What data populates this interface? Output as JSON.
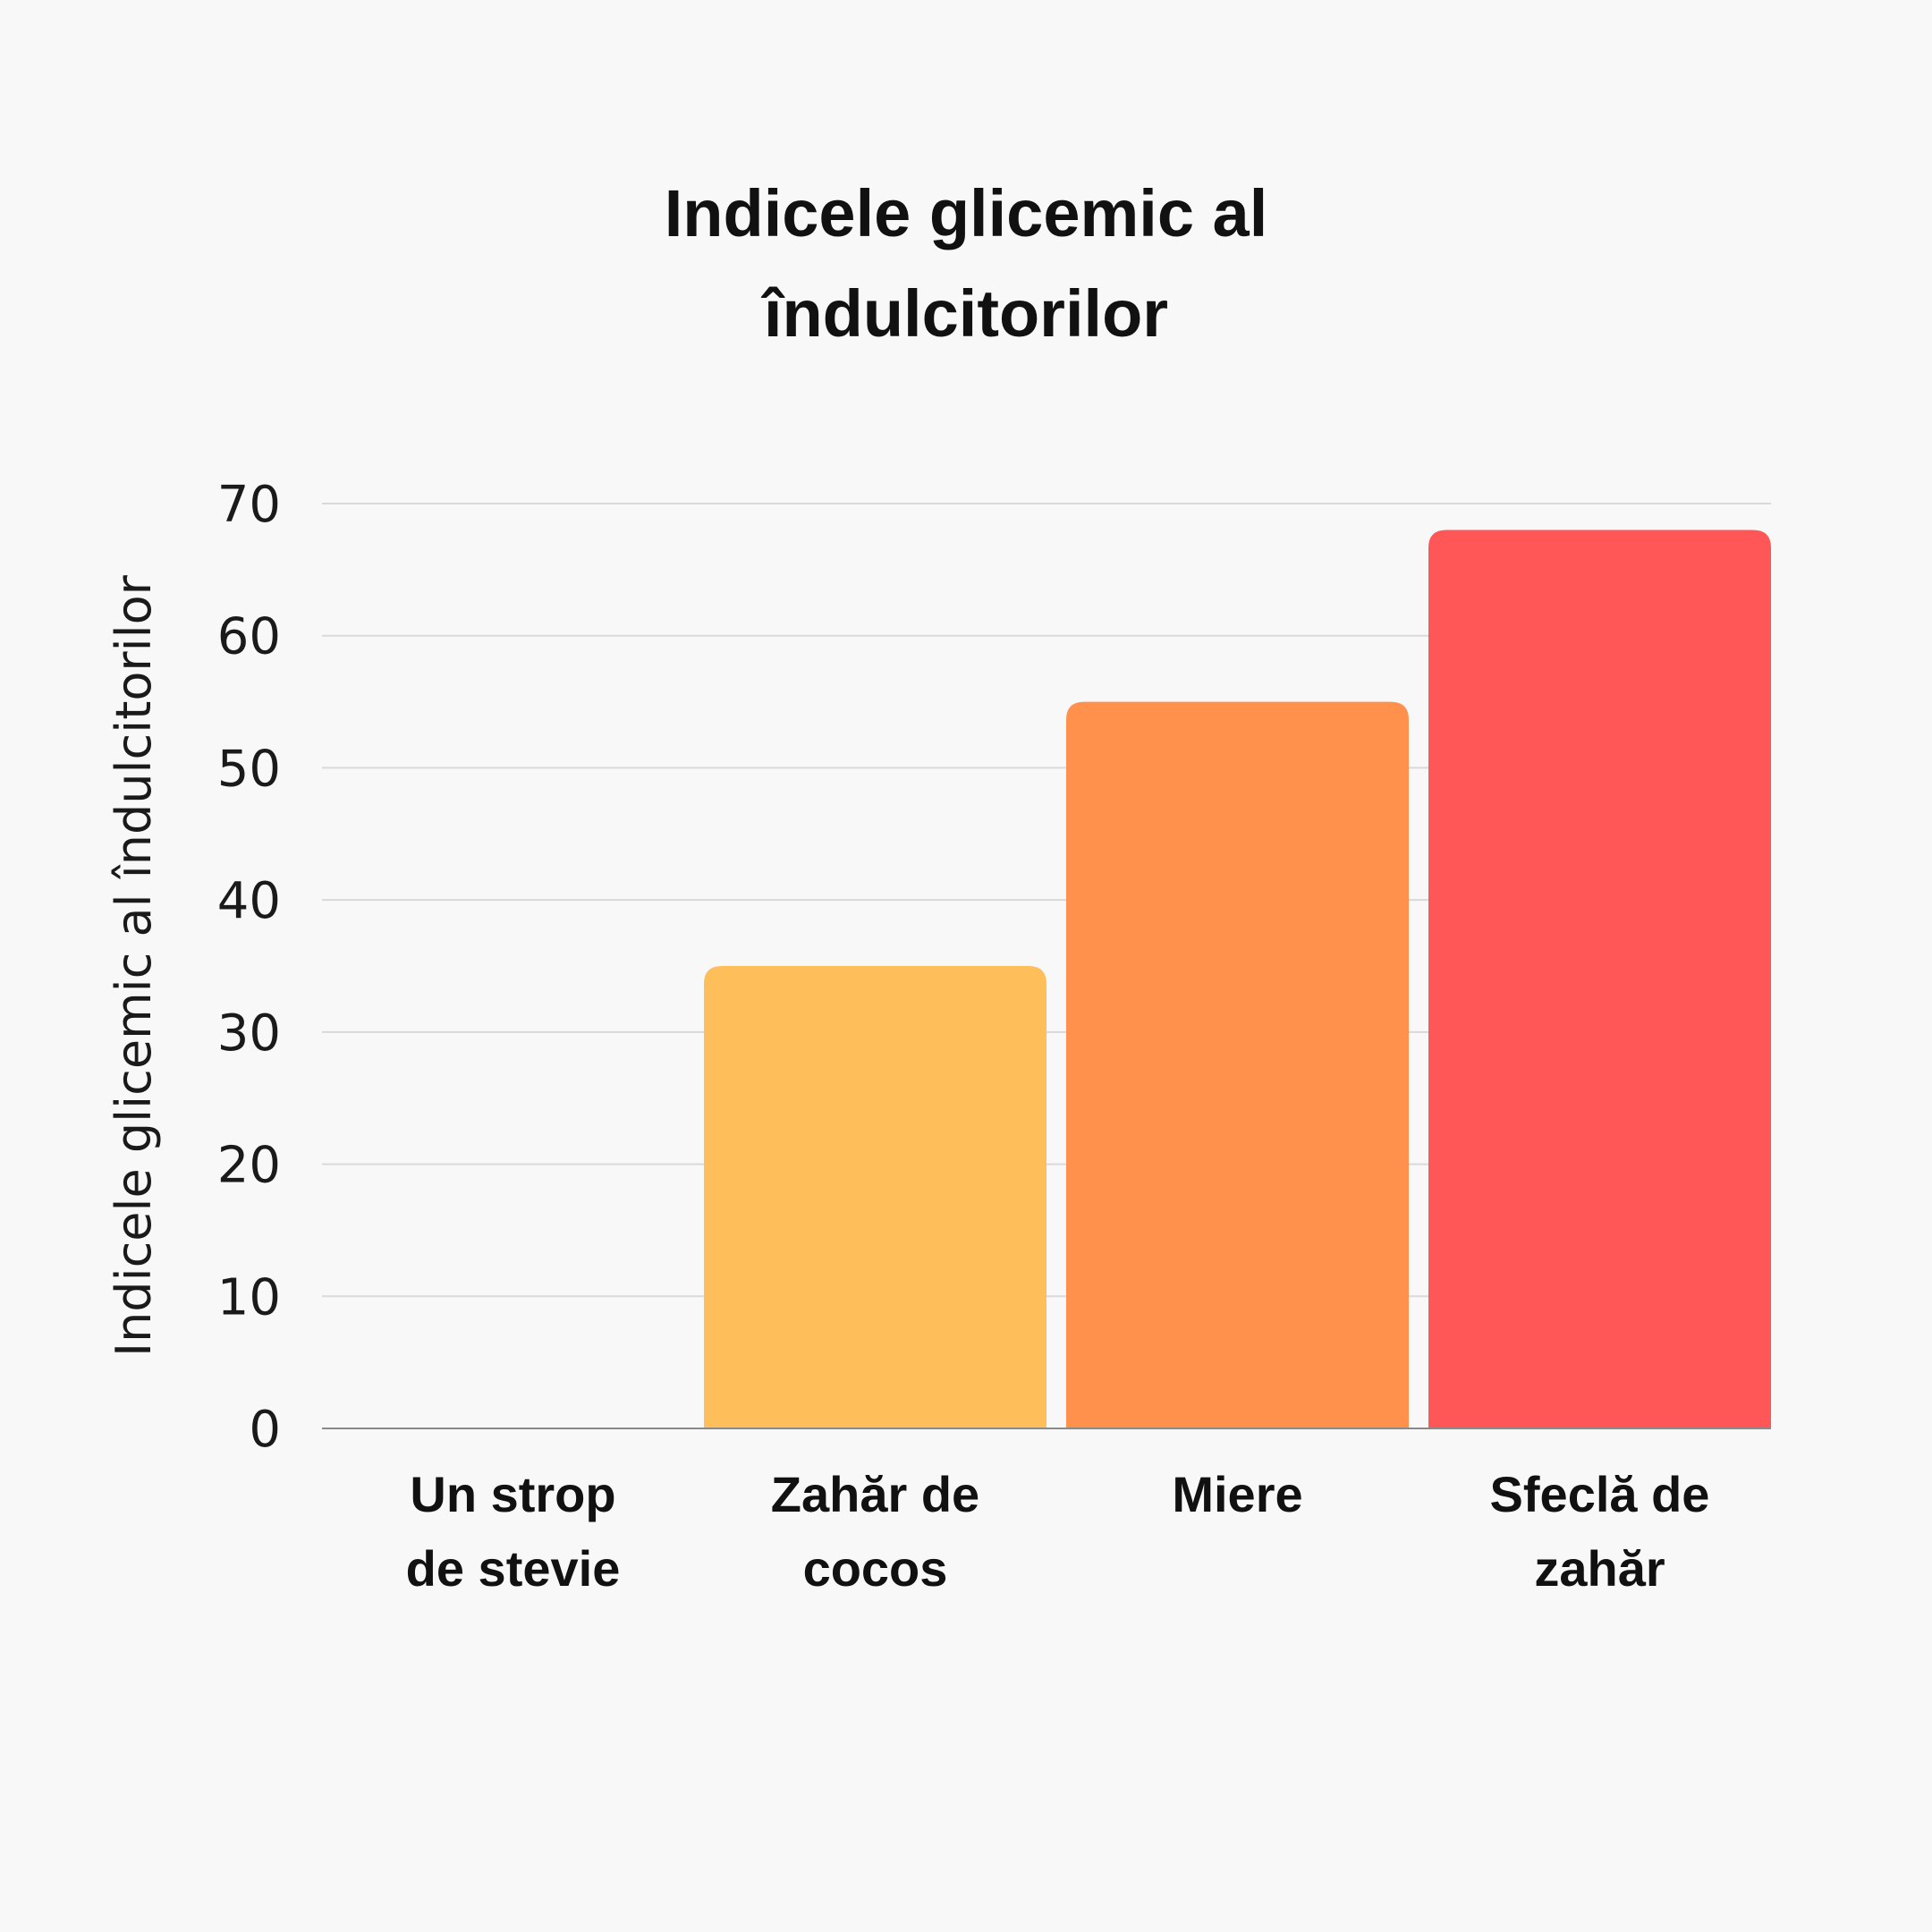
{
  "chart_data": {
    "type": "bar",
    "title_lines": [
      "Indicele glicemic al",
      "îndulcitorilor"
    ],
    "ylabel": "Indicele glicemic al îndulcitorilor",
    "xlabel": "",
    "ylim": [
      0,
      70
    ],
    "yticks": [
      0,
      10,
      20,
      30,
      40,
      50,
      60,
      70
    ],
    "grid": true,
    "legend": "none",
    "categories": [
      {
        "lines": [
          "Un strop",
          "de stevie"
        ]
      },
      {
        "lines": [
          "Zahăr de",
          "cocos"
        ]
      },
      {
        "lines": [
          "Miere"
        ]
      },
      {
        "lines": [
          "Sfeclă de",
          "zahăr"
        ]
      }
    ],
    "values": [
      0,
      35,
      55,
      68
    ],
    "colors": [
      "#ffffff",
      "#febe5a",
      "#ff914d",
      "#ff5757"
    ]
  }
}
